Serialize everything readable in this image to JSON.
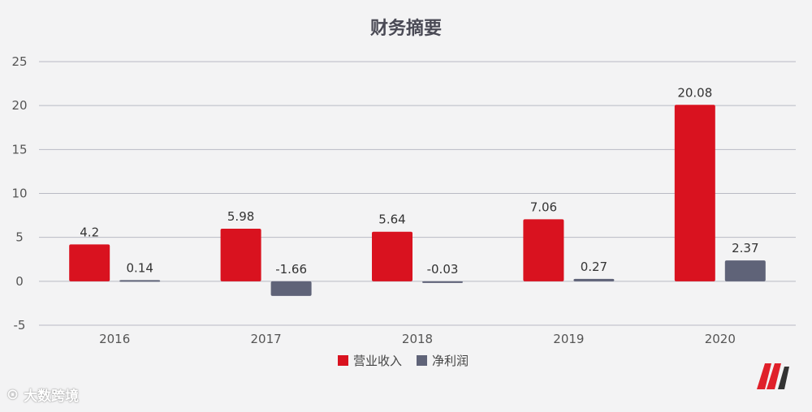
{
  "chart_data": {
    "type": "bar",
    "title": "财务摘要",
    "categories": [
      "2016",
      "2017",
      "2018",
      "2019",
      "2020"
    ],
    "series": [
      {
        "name": "营业收入",
        "values": [
          4.2,
          5.98,
          5.64,
          7.06,
          20.08
        ],
        "labels": [
          "4.2",
          "5.98",
          "5.64",
          "7.06",
          "20.08"
        ],
        "color": "#d9121f"
      },
      {
        "name": "净利润",
        "values": [
          0.14,
          -1.66,
          -0.03,
          0.27,
          2.37
        ],
        "labels": [
          "0.14",
          "-1.66",
          "-0.03",
          "0.27",
          "2.37"
        ],
        "color": "#5f6378"
      }
    ],
    "yticks": [
      "-5",
      "0",
      "5",
      "10",
      "15",
      "20",
      "25"
    ],
    "ylim": [
      -5,
      25
    ],
    "grid": true,
    "legend_position": "bottom-center"
  },
  "watermark": {
    "text": "大数跨境"
  },
  "logo": {
    "name": "brand-m-logo",
    "colors": [
      "#e0202a",
      "#333333"
    ]
  }
}
